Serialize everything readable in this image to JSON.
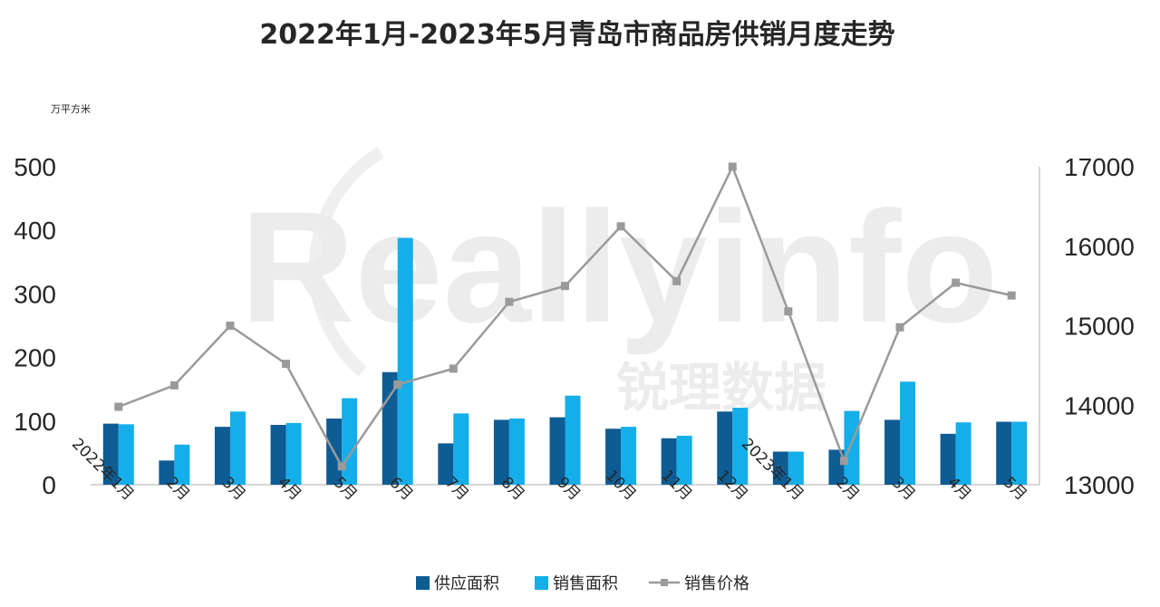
{
  "watermark": {
    "logo_text": "Reallyinfo",
    "cn_text": "锐理数据"
  },
  "chart_data": {
    "type": "bar",
    "title": "2022年1月-2023年5月青岛市商品房供销月度走势",
    "y_unit_label": "万平方米",
    "categories": [
      "2022年1月",
      "2月",
      "3月",
      "4月",
      "5月",
      "6月",
      "7月",
      "8月",
      "9月",
      "10月",
      "11月",
      "12月",
      "2023年1月",
      "2月",
      "3月",
      "4月",
      "5月"
    ],
    "ylim": [
      0,
      500
    ],
    "yticks": [
      0,
      100,
      200,
      300,
      400,
      500
    ],
    "y2lim": [
      13000,
      17000
    ],
    "y2ticks": [
      13000,
      14000,
      15000,
      16000,
      17000
    ],
    "series": [
      {
        "name": "供应面积",
        "type": "bar",
        "axis": "left",
        "color": "#0d5c94",
        "values": [
          96,
          38,
          91,
          94,
          104,
          177,
          65,
          102,
          106,
          88,
          73,
          115,
          52,
          55,
          102,
          80,
          99
        ]
      },
      {
        "name": "销售面积",
        "type": "bar",
        "axis": "left",
        "color": "#14aeea",
        "values": [
          95,
          63,
          115,
          97,
          136,
          388,
          112,
          104,
          140,
          91,
          77,
          121,
          52,
          116,
          162,
          98,
          99
        ]
      },
      {
        "name": "销售价格",
        "type": "line",
        "axis": "right",
        "color": "#9a9a9a",
        "values": [
          13980,
          14250,
          15000,
          14520,
          13230,
          14260,
          14460,
          15300,
          15500,
          16250,
          15560,
          17000,
          15180,
          13300,
          14980,
          15540,
          15380
        ]
      }
    ],
    "grid": false,
    "legend_position": "bottom"
  }
}
